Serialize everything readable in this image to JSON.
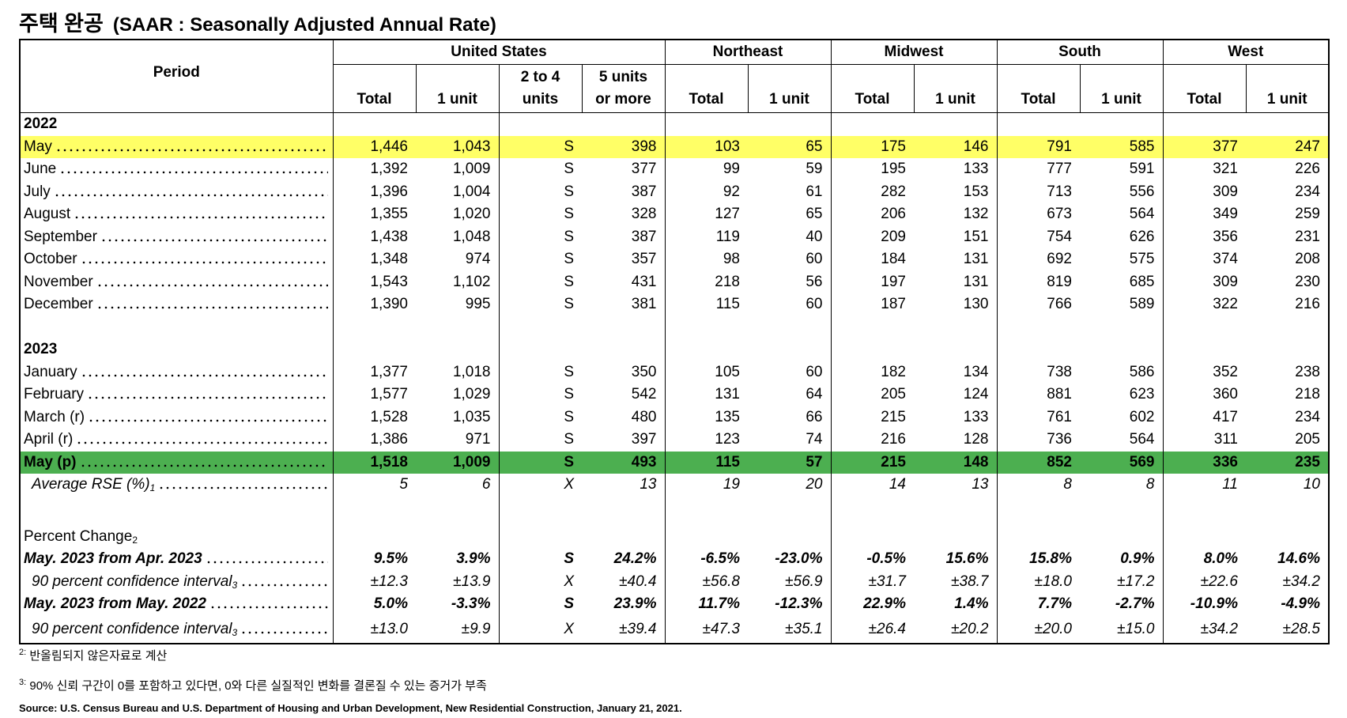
{
  "title": "주택 완공",
  "subtitle": "(SAAR : Seasonally Adjusted Annual Rate)",
  "table": {
    "period_header": "Period",
    "groups": [
      {
        "name": "United States",
        "columns": [
          [
            "Total"
          ],
          [
            "1 unit"
          ],
          [
            "2 to 4",
            "units"
          ],
          [
            "5 units",
            "or more"
          ]
        ]
      },
      {
        "name": "Northeast",
        "columns": [
          [
            "Total"
          ],
          [
            "1 unit"
          ]
        ]
      },
      {
        "name": "Midwest",
        "columns": [
          [
            "Total"
          ],
          [
            "1 unit"
          ]
        ]
      },
      {
        "name": "South",
        "columns": [
          [
            "Total"
          ],
          [
            "1 unit"
          ]
        ]
      },
      {
        "name": "West",
        "columns": [
          [
            "Total"
          ],
          [
            "1 unit"
          ]
        ]
      }
    ],
    "sections": [
      {
        "year": "2022",
        "rows": [
          {
            "period": "May",
            "highlight": "#ffff66",
            "cells": [
              "1,446",
              "1,043",
              "S",
              "398",
              "103",
              "65",
              "175",
              "146",
              "791",
              "585",
              "377",
              "247"
            ]
          },
          {
            "period": "June",
            "cells": [
              "1,392",
              "1,009",
              "S",
              "377",
              "99",
              "59",
              "195",
              "133",
              "777",
              "591",
              "321",
              "226"
            ]
          },
          {
            "period": "July",
            "cells": [
              "1,396",
              "1,004",
              "S",
              "387",
              "92",
              "61",
              "282",
              "153",
              "713",
              "556",
              "309",
              "234"
            ]
          },
          {
            "period": "August",
            "cells": [
              "1,355",
              "1,020",
              "S",
              "328",
              "127",
              "65",
              "206",
              "132",
              "673",
              "564",
              "349",
              "259"
            ]
          },
          {
            "period": "September",
            "cells": [
              "1,438",
              "1,048",
              "S",
              "387",
              "119",
              "40",
              "209",
              "151",
              "754",
              "626",
              "356",
              "231"
            ]
          },
          {
            "period": "October",
            "cells": [
              "1,348",
              "974",
              "S",
              "357",
              "98",
              "60",
              "184",
              "131",
              "692",
              "575",
              "374",
              "208"
            ]
          },
          {
            "period": "November",
            "cells": [
              "1,543",
              "1,102",
              "S",
              "431",
              "218",
              "56",
              "197",
              "131",
              "819",
              "685",
              "309",
              "230"
            ]
          },
          {
            "period": "December",
            "cells": [
              "1,390",
              "995",
              "S",
              "381",
              "115",
              "60",
              "187",
              "130",
              "766",
              "589",
              "322",
              "216"
            ]
          }
        ]
      },
      {
        "year": "2023",
        "rows": [
          {
            "period": "January",
            "cells": [
              "1,377",
              "1,018",
              "S",
              "350",
              "105",
              "60",
              "182",
              "134",
              "738",
              "586",
              "352",
              "238"
            ]
          },
          {
            "period": "February",
            "cells": [
              "1,577",
              "1,029",
              "S",
              "542",
              "131",
              "64",
              "205",
              "124",
              "881",
              "623",
              "360",
              "218"
            ]
          },
          {
            "period": "March (r)",
            "cells": [
              "1,528",
              "1,035",
              "S",
              "480",
              "135",
              "66",
              "215",
              "133",
              "761",
              "602",
              "417",
              "234"
            ]
          },
          {
            "period": "April (r)",
            "cells": [
              "1,386",
              "971",
              "S",
              "397",
              "123",
              "74",
              "216",
              "128",
              "736",
              "564",
              "311",
              "205"
            ]
          },
          {
            "period": "May (p)",
            "highlight": "#4caf50",
            "bold": true,
            "cells": [
              "1,518",
              "1,009",
              "S",
              "493",
              "115",
              "57",
              "215",
              "148",
              "852",
              "569",
              "336",
              "235"
            ]
          }
        ]
      }
    ],
    "rse": {
      "label": "Average RSE (%)",
      "note": "1",
      "cells": [
        "5",
        "6",
        "X",
        "13",
        "19",
        "20",
        "14",
        "13",
        "8",
        "8",
        "11",
        "10"
      ]
    },
    "percent_change": {
      "label": "Percent Change",
      "note": "2",
      "rows": [
        {
          "label": "May. 2023 from Apr. 2023",
          "cells": [
            "9.5%",
            "3.9%",
            "S",
            "24.2%",
            "-6.5%",
            "-23.0%",
            "-0.5%",
            "15.6%",
            "15.8%",
            "0.9%",
            "8.0%",
            "14.6%"
          ]
        },
        {
          "label": "90 percent confidence interval",
          "note": "3",
          "cells": [
            "±12.3",
            "±13.9",
            "X",
            "±40.4",
            "±56.8",
            "±56.9",
            "±31.7",
            "±38.7",
            "±18.0",
            "±17.2",
            "±22.6",
            "±34.2"
          ]
        },
        {
          "label": "May. 2023 from May. 2022",
          "cells": [
            "5.0%",
            "-3.3%",
            "S",
            "23.9%",
            "11.7%",
            "-12.3%",
            "22.9%",
            "1.4%",
            "7.7%",
            "-2.7%",
            "-10.9%",
            "-4.9%"
          ]
        },
        {
          "label": "90 percent confidence interval",
          "note": "3",
          "cells": [
            "±13.0",
            "±9.9",
            "X",
            "±39.4",
            "±47.3",
            "±35.1",
            "±26.4",
            "±20.2",
            "±20.0",
            "±15.0",
            "±34.2",
            "±28.5"
          ]
        }
      ]
    }
  },
  "footnotes": [
    {
      "mark": "2:",
      "text": "반올림되지 않은자료로 계산"
    },
    {
      "mark": "3:",
      "text": "90% 신뢰 구간이 0를 포함하고 있다면, 0와 다른 실질적인 변화를 결론질 수 있는 증거가 부족"
    }
  ],
  "source": "Source: U.S. Census Bureau and U.S. Department of Housing and Urban Development, New Residential Construction, January 21, 2021."
}
